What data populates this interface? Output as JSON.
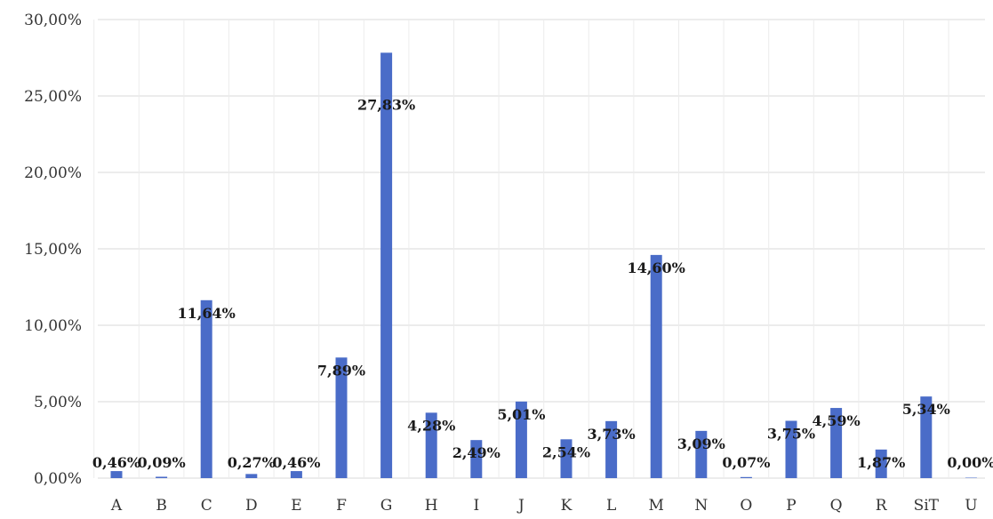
{
  "chart_data": {
    "type": "bar",
    "categories": [
      "A",
      "B",
      "C",
      "D",
      "E",
      "F",
      "G",
      "H",
      "I",
      "J",
      "K",
      "L",
      "M",
      "N",
      "O",
      "P",
      "Q",
      "R",
      "SiT",
      "U"
    ],
    "values": [
      0.46,
      0.09,
      11.64,
      0.27,
      0.46,
      7.89,
      27.83,
      4.28,
      2.49,
      5.01,
      2.54,
      3.73,
      14.6,
      3.09,
      0.07,
      3.75,
      4.59,
      1.87,
      5.34,
      0.0
    ],
    "data_labels": [
      "0,46%",
      "0,09%",
      "11,64%",
      "0,27%",
      "0,46%",
      "7,89%",
      "27,83%",
      "4,28%",
      "2,49%",
      "5,01%",
      "2,54%",
      "3,73%",
      "14,60%",
      "3,09%",
      "0,07%",
      "3,75%",
      "4,59%",
      "1,87%",
      "5,34%",
      "0,00%"
    ],
    "y_tick_values": [
      0,
      5,
      10,
      15,
      20,
      25,
      30
    ],
    "y_tick_labels": [
      "0,00%",
      "5,00%",
      "10,00%",
      "15,00%",
      "20,00%",
      "25,00%",
      "30,00%"
    ],
    "ylim": [
      0,
      30
    ],
    "grid": true,
    "bar_color": "#4a6cc8",
    "grid_color": "#d9d9d9",
    "title": "",
    "xlabel": "",
    "ylabel": ""
  }
}
